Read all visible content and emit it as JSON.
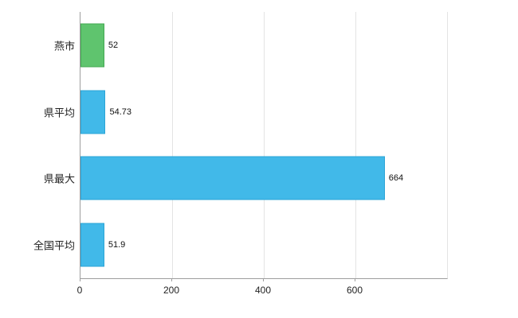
{
  "chart_data": {
    "type": "bar",
    "orientation": "horizontal",
    "title": "",
    "categories": [
      "燕市",
      "県平均",
      "県最大",
      "全国平均"
    ],
    "values": [
      52,
      54.73,
      664,
      51.9
    ],
    "value_labels": [
      "52",
      "54.73",
      "664",
      "51.9"
    ],
    "bar_colors": [
      "#5fc46e",
      "#41b9e9",
      "#41b9e9",
      "#41b9e9"
    ],
    "bar_border_colors": [
      "#43a852",
      "#2ba4d6",
      "#2ba4d6",
      "#2ba4d6"
    ],
    "xlim": [
      0,
      800
    ],
    "x_ticks": [
      0,
      200,
      400,
      600
    ],
    "x_tick_labels": [
      "0",
      "200",
      "400",
      "600"
    ],
    "grid": true,
    "legend": false,
    "background": "#ffffff",
    "axis_color": "#9e9e9e",
    "grid_color": "#e4e4e4"
  }
}
